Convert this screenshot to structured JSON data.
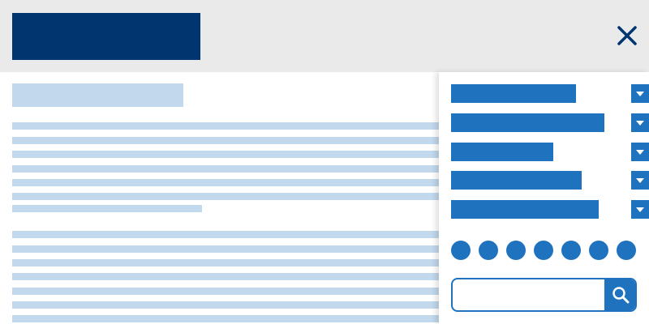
{
  "header": {
    "logo_icon": "brand-logo",
    "close_icon": "close-icon"
  },
  "sidebar": {
    "dropdowns": [
      {
        "label": "",
        "icon": "chevron-down-icon"
      },
      {
        "label": "",
        "icon": "chevron-down-icon"
      },
      {
        "label": "",
        "icon": "chevron-down-icon"
      },
      {
        "label": "",
        "icon": "chevron-down-icon"
      },
      {
        "label": "",
        "icon": "chevron-down-icon"
      }
    ],
    "dot_count": 7,
    "search": {
      "value": "",
      "placeholder": "",
      "icon": "search-icon"
    }
  },
  "colors": {
    "header_bg": "#eaeaea",
    "brand": "#003570",
    "accent": "#1f72bd",
    "placeholder": "#c2d8ec"
  }
}
